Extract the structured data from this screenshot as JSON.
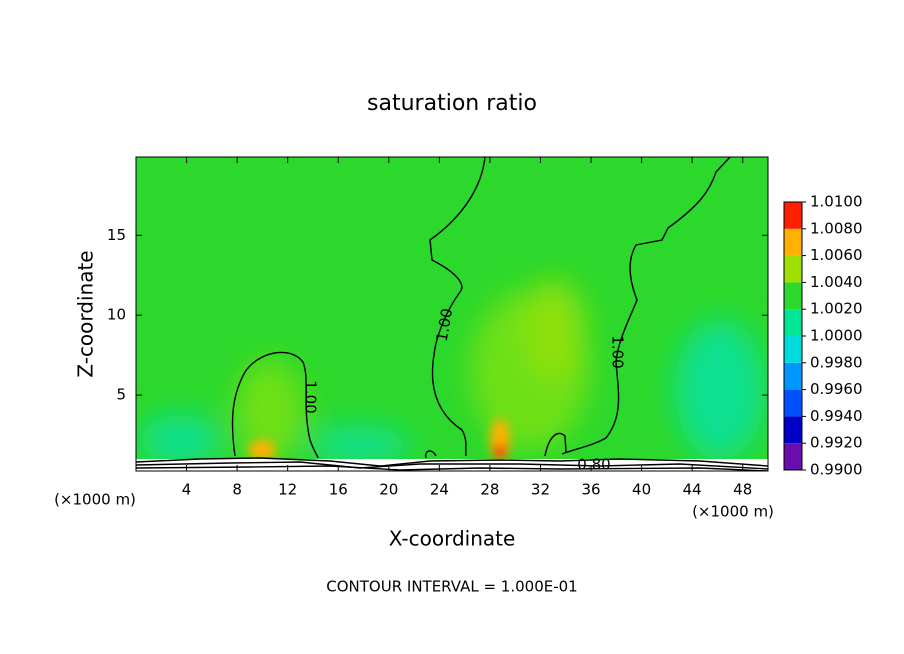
{
  "chart_data": {
    "type": "contour",
    "title": "saturation ratio",
    "x_label": "X-coordinate",
    "y_label": "Z-coordinate",
    "x_unit_label": "(×1000 m)",
    "footer": "CONTOUR INTERVAL = 1.000E-01",
    "xlim": [
      0,
      50
    ],
    "xticks": [
      4,
      8,
      12,
      16,
      20,
      24,
      28,
      32,
      36,
      40,
      44,
      48
    ],
    "ylim": [
      0.25,
      19.9
    ],
    "yticks": [
      5,
      10,
      15
    ],
    "contour_labels": [
      "1.00",
      "1.00",
      "1.00",
      "0.80"
    ],
    "colorbar": {
      "ticks": [
        {
          "value": 0.99,
          "label": "0.9900"
        },
        {
          "value": 0.992,
          "label": "0.9920"
        },
        {
          "value": 0.994,
          "label": "0.9940"
        },
        {
          "value": 0.996,
          "label": "0.9960"
        },
        {
          "value": 0.998,
          "label": "0.9980"
        },
        {
          "value": 1.0,
          "label": "1.0000"
        },
        {
          "value": 1.002,
          "label": "1.0020"
        },
        {
          "value": 1.004,
          "label": "1.0040"
        },
        {
          "value": 1.006,
          "label": "1.0060"
        },
        {
          "value": 1.008,
          "label": "1.0080"
        },
        {
          "value": 1.01,
          "label": "1.0100"
        }
      ],
      "colors": [
        "#6a0dad",
        "#0000c8",
        "#0050ff",
        "#0096ff",
        "#00dcdc",
        "#00e696",
        "#2cd82c",
        "#9ee000",
        "#ffb000",
        "#ff2000"
      ]
    }
  }
}
